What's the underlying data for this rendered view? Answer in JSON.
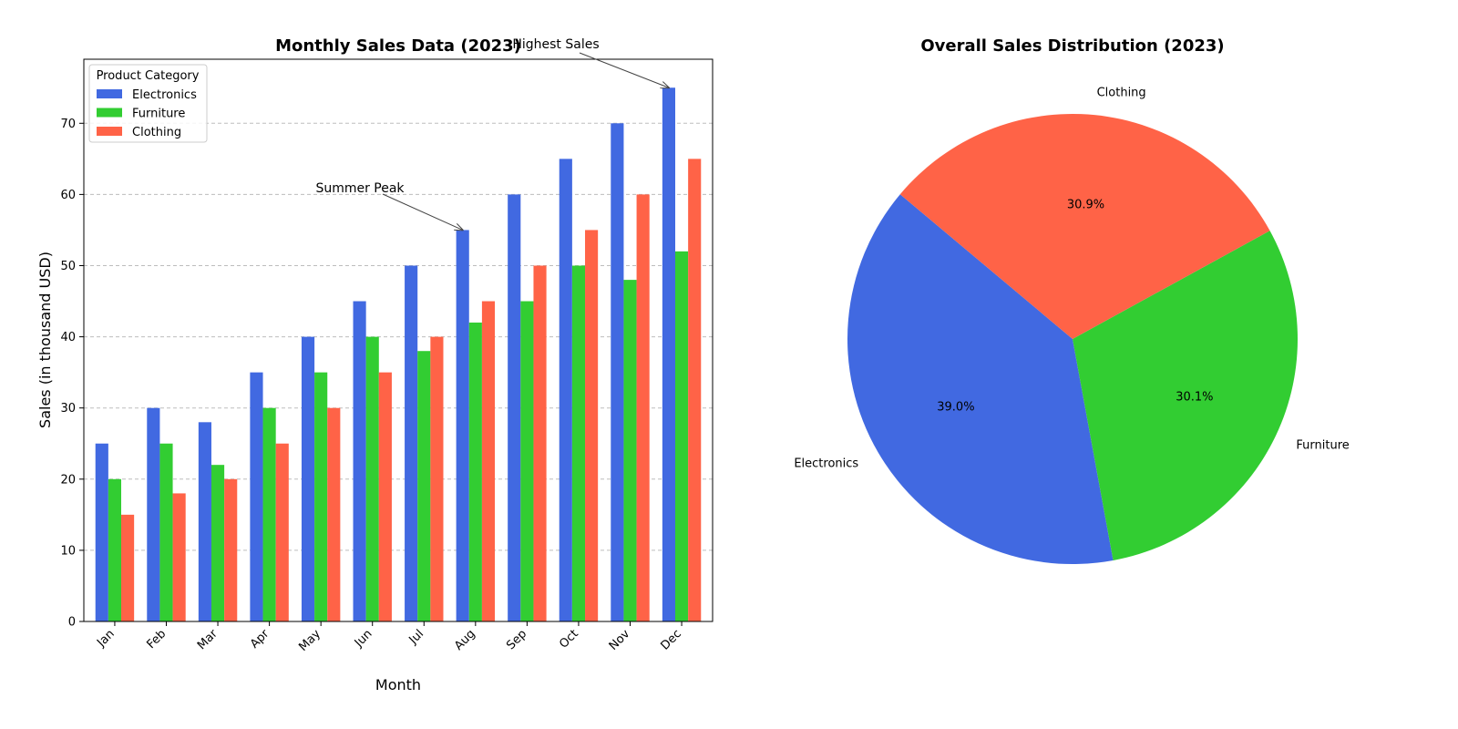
{
  "colors": {
    "Electronics": "#4169E1",
    "Furniture": "#32CD32",
    "Clothing": "#FF6347",
    "grid": "#bdbdbd",
    "annotation_arrow": "#444444"
  },
  "chart_data": [
    {
      "type": "bar",
      "title": "Monthly Sales Data (2023)",
      "xlabel": "Month",
      "ylabel": "Sales (in thousand USD)",
      "ylim": [
        0,
        79
      ],
      "yticks": [
        0,
        10,
        20,
        30,
        40,
        50,
        60,
        70
      ],
      "grid": "y-dashed",
      "legend_title": "Product Category",
      "legend_position": "top-left",
      "categories": [
        "Jan",
        "Feb",
        "Mar",
        "Apr",
        "May",
        "Jun",
        "Jul",
        "Aug",
        "Sep",
        "Oct",
        "Nov",
        "Dec"
      ],
      "series": [
        {
          "name": "Electronics",
          "values": [
            25,
            30,
            28,
            35,
            40,
            45,
            50,
            55,
            60,
            65,
            70,
            75
          ]
        },
        {
          "name": "Furniture",
          "values": [
            20,
            25,
            22,
            30,
            35,
            40,
            38,
            42,
            45,
            50,
            48,
            52
          ]
        },
        {
          "name": "Clothing",
          "values": [
            15,
            18,
            20,
            25,
            30,
            35,
            40,
            45,
            50,
            55,
            60,
            65
          ]
        }
      ],
      "annotations": [
        {
          "text": "Summer Peak",
          "category": "Aug",
          "series": "Electronics",
          "value": 55
        },
        {
          "text": "Highest Sales",
          "category": "Dec",
          "series": "Electronics",
          "value": 75
        }
      ]
    },
    {
      "type": "pie",
      "title": "Overall Sales Distribution (2023)",
      "slices": [
        {
          "label": "Electronics",
          "value": 39.0,
          "pct_text": "39.0%"
        },
        {
          "label": "Furniture",
          "value": 30.1,
          "pct_text": "30.1%"
        },
        {
          "label": "Clothing",
          "value": 30.9,
          "pct_text": "30.9%"
        }
      ]
    }
  ]
}
